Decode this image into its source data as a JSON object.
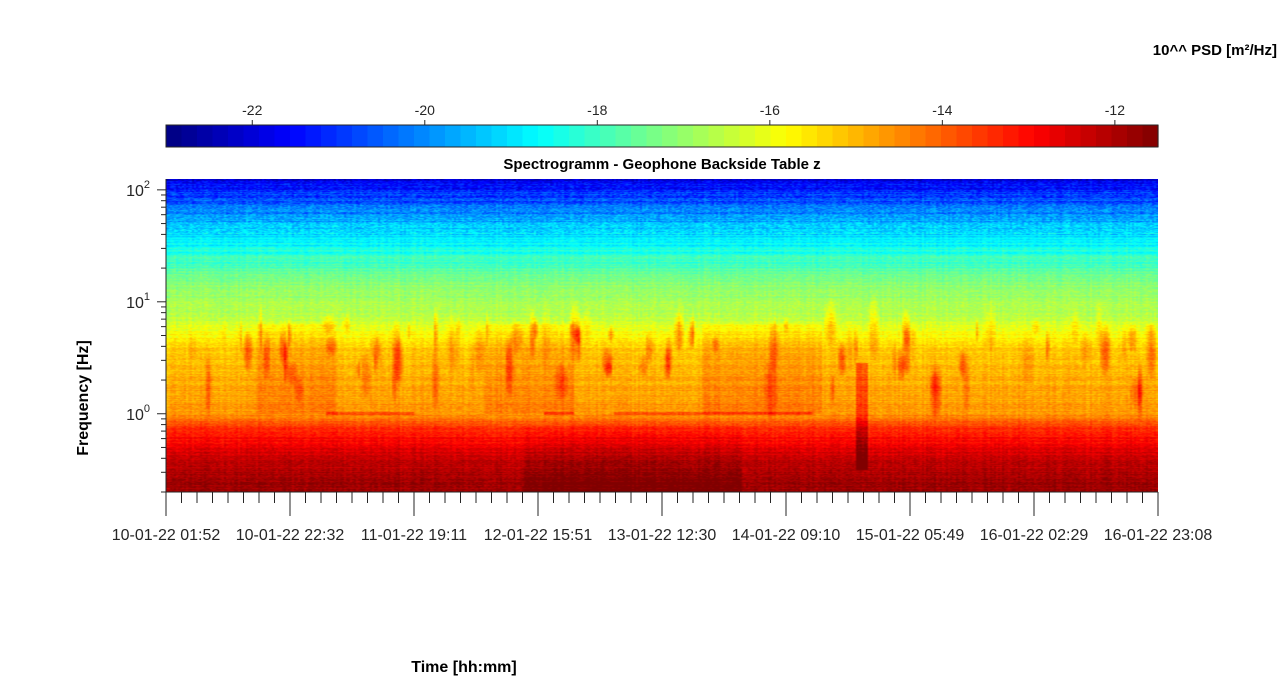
{
  "chart_data": {
    "type": "heatmap",
    "title": "Spectrogramm - Geophone Backside Table z",
    "xlabel": "Time [hh:mm]",
    "ylabel": "Frequency [Hz]",
    "colorbar": {
      "title": "10^^ PSD [m²/Hz]",
      "range": [
        -23,
        -11.5
      ],
      "ticks": [
        -22,
        -20,
        -18,
        -16,
        -14,
        -12
      ],
      "tick_labels": [
        "-22",
        "-20",
        "-18",
        "-16",
        "-14",
        "-12"
      ],
      "colormap": "jet",
      "position": "top"
    },
    "y_scale": "log",
    "y_range_hz": [
      0.2,
      125
    ],
    "y_ticks": [
      {
        "value": 1,
        "base": "10",
        "exp": "0"
      },
      {
        "value": 10,
        "base": "10",
        "exp": "1"
      },
      {
        "value": 100,
        "base": "10",
        "exp": "2"
      }
    ],
    "x_range": [
      "10-01-22 01:52",
      "16-01-22 23:08"
    ],
    "x_tick_labels": [
      "10-01-22 01:52",
      "10-01-22 22:32",
      "11-01-22 19:11",
      "12-01-22 15:51",
      "13-01-22 12:30",
      "14-01-22 09:10",
      "15-01-22 05:49",
      "16-01-22 02:29",
      "16-01-22 23:08"
    ],
    "psd_profile_by_frequency": [
      {
        "freq_hz": 0.2,
        "psd": -11.8
      },
      {
        "freq_hz": 0.4,
        "psd": -12.3
      },
      {
        "freq_hz": 0.7,
        "psd": -13.3
      },
      {
        "freq_hz": 1.0,
        "psd": -14.6
      },
      {
        "freq_hz": 2.0,
        "psd": -14.9
      },
      {
        "freq_hz": 4.0,
        "psd": -15.3
      },
      {
        "freq_hz": 7.0,
        "psd": -16.5
      },
      {
        "freq_hz": 15.0,
        "psd": -17.2
      },
      {
        "freq_hz": 25.0,
        "psd": -18.2
      },
      {
        "freq_hz": 50.0,
        "psd": -19.5
      },
      {
        "freq_hz": 100.0,
        "psd": -21.2
      },
      {
        "freq_hz": 125.0,
        "psd": -22.0
      }
    ]
  }
}
